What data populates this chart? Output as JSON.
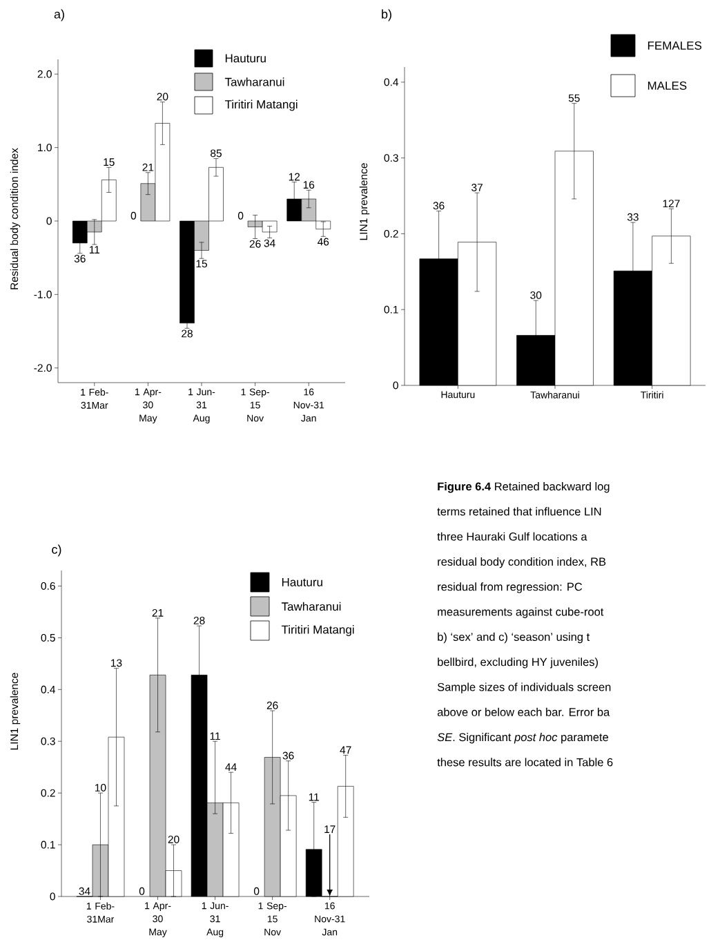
{
  "chart_data": [
    {
      "type": "bar",
      "title": "a)",
      "ylabel": "Residual body condition index",
      "categories": [
        "1 Feb-31Mar",
        "1 Apr-30 May",
        "1 Jun-31 Aug",
        "1 Sep-15 Nov",
        "16 Nov-31 Jan"
      ],
      "ylim": [
        -2.2,
        2.2
      ],
      "yticks": [
        {
          "value": -2,
          "label": "-2.0"
        },
        {
          "value": -1,
          "label": "-1.0"
        },
        0,
        {
          "value": 1,
          "label": "1.0"
        },
        {
          "value": 2,
          "label": "2.0"
        }
      ],
      "legend": "top right",
      "annotations": [
        "36",
        "0",
        "28",
        "0",
        "12",
        "11",
        "21",
        "15",
        "26",
        "16",
        "15",
        "20",
        "85",
        "34",
        "46"
      ],
      "series": [
        {
          "name": "Hauturu",
          "color": "#000000",
          "values": [
            -0.3,
            null,
            -1.39,
            null,
            0.3
          ],
          "errors": [
            0.14,
            null,
            0.07,
            null,
            0.23
          ]
        },
        {
          "name": "Tawharanui",
          "color": "#c0c0c0",
          "values": [
            -0.15,
            0.51,
            -0.4,
            -0.08,
            0.3
          ],
          "errors": [
            0.17,
            0.15,
            0.11,
            0.16,
            0.12
          ]
        },
        {
          "name": "Tiritiri Matangi",
          "color": "#ffffff",
          "values": [
            0.56,
            1.33,
            0.73,
            -0.15,
            -0.11
          ],
          "errors": [
            0.17,
            0.29,
            0.12,
            0.08,
            0.1
          ]
        }
      ]
    },
    {
      "type": "bar",
      "title": "b)",
      "ylabel": "LIN1 prevalence",
      "categories": [
        "Hauturu",
        "Tawharanui",
        "Tiritiri"
      ],
      "ylim": [
        0,
        0.42
      ],
      "yticks": [
        0,
        0.1,
        0.2,
        0.3,
        0.4
      ],
      "legend": "top right",
      "annotations": [
        "36",
        "30",
        "33",
        "37",
        "55",
        "127"
      ],
      "series": [
        {
          "name": "FEMALES",
          "color": "#000000",
          "values": [
            0.167,
            0.066,
            0.151
          ],
          "errors": [
            0.063,
            0.046,
            0.064
          ]
        },
        {
          "name": "MALES",
          "color": "#ffffff",
          "values": [
            0.189,
            0.309,
            0.197
          ],
          "errors": [
            0.065,
            0.063,
            0.036
          ]
        }
      ]
    },
    {
      "type": "bar",
      "title": "c)",
      "ylabel": "LIN1 prevalence",
      "categories": [
        "1 Feb-31Mar",
        "1 Apr-30 May",
        "1 Jun-31 Aug",
        "1 Sep-15 Nov",
        "16 Nov-31 Jan"
      ],
      "ylim": [
        0,
        0.63
      ],
      "yticks": [
        0,
        0.1,
        0.2,
        0.3,
        0.4,
        0.5,
        0.6
      ],
      "legend": "top right",
      "annotations": [
        "34",
        "0",
        "28",
        "0",
        "11",
        "10",
        "21",
        "11",
        "26",
        "17",
        "13",
        "20",
        "44",
        "36",
        "47"
      ],
      "series": [
        {
          "name": "Hauturu",
          "color": "#000000",
          "values": [
            0,
            null,
            0.428,
            null,
            0.091
          ],
          "errors": [
            null,
            null,
            0.095,
            null,
            0.091
          ]
        },
        {
          "name": "Tawharanui",
          "color": "#c0c0c0",
          "values": [
            0.1,
            0.428,
            0.181,
            0.269,
            0
          ],
          "errors": [
            0.1,
            0.11,
            [
              0.16,
              0.3
            ],
            0.09,
            null
          ]
        },
        {
          "name": "Tiritiri Matangi",
          "color": "#ffffff",
          "values": [
            0.308,
            0.05,
            0.181,
            0.195,
            0.213
          ],
          "errors": [
            0.133,
            0.05,
            0.059,
            0.067,
            0.06
          ]
        }
      ]
    },
    {
      "type": "other",
      "annotations": [
        "**Figure 6.4** Retained backward log",
        "terms retained that influence LIN",
        "three Hauraki Gulf locations a",
        "residual body condition index, RB",
        "residual from regression: PC",
        "measurements against cube-root",
        "b) ‘sex’ and c) ‘season’ using t",
        "bellbird, excluding HY juveniles)",
        "Sample sizes of individuals screen",
        "above or below each bar. Error ba",
        "*SE*. Significant *post hoc* paramete",
        "these results are located in Table 6"
      ]
    }
  ]
}
